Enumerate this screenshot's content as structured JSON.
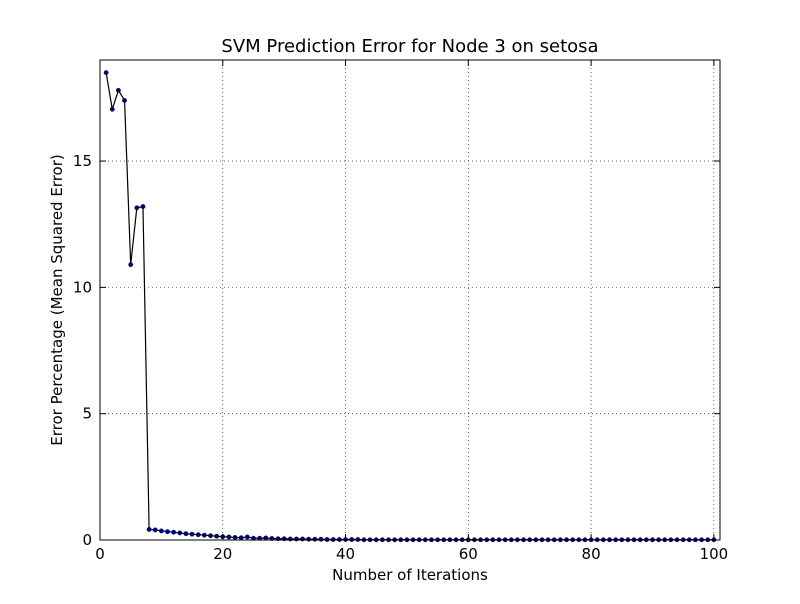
{
  "chart_data": {
    "type": "line",
    "title": "SVM Prediction Error for Node 3 on setosa",
    "xlabel": "Number of Iterations",
    "ylabel": "Error Percentage (Mean Squared Error)",
    "xlim": [
      0,
      101
    ],
    "ylim": [
      0,
      19
    ],
    "xticks": [
      0,
      20,
      40,
      60,
      80,
      100
    ],
    "yticks": [
      0,
      5,
      10,
      15
    ],
    "xtick_labels": [
      "0",
      "20",
      "40",
      "60",
      "80",
      "100"
    ],
    "ytick_labels": [
      "0",
      "5",
      "10",
      "15"
    ],
    "grid": true,
    "series": [
      {
        "line_color": "#000000",
        "marker_color": "#00008b",
        "x": [
          1,
          2,
          3,
          4,
          5,
          6,
          7,
          8,
          9,
          10,
          11,
          12,
          13,
          14,
          15,
          16,
          17,
          18,
          19,
          20,
          21,
          22,
          23,
          24,
          25,
          26,
          27,
          28,
          29,
          30,
          31,
          32,
          33,
          34,
          35,
          36,
          37,
          38,
          39,
          40,
          41,
          42,
          43,
          44,
          45,
          46,
          47,
          48,
          49,
          50,
          51,
          52,
          53,
          54,
          55,
          56,
          57,
          58,
          59,
          60,
          61,
          62,
          63,
          64,
          65,
          66,
          67,
          68,
          69,
          70,
          71,
          72,
          73,
          74,
          75,
          76,
          77,
          78,
          79,
          80,
          81,
          82,
          83,
          84,
          85,
          86,
          87,
          88,
          89,
          90,
          91,
          92,
          93,
          94,
          95,
          96,
          97,
          98,
          99,
          100
        ],
        "y": [
          18.5,
          17.05,
          17.8,
          17.4,
          10.9,
          13.15,
          13.2,
          0.42,
          0.4,
          0.36,
          0.33,
          0.31,
          0.28,
          0.25,
          0.23,
          0.21,
          0.19,
          0.17,
          0.15,
          0.13,
          0.12,
          0.1,
          0.09,
          0.12,
          0.07,
          0.07,
          0.08,
          0.06,
          0.05,
          0.05,
          0.04,
          0.04,
          0.04,
          0.03,
          0.03,
          0.03,
          0.02,
          0.02,
          0.02,
          0.02,
          0.02,
          0.02,
          0.01,
          0.01,
          0.01,
          0.01,
          0.01,
          0.01,
          0.01,
          0.01,
          0.01,
          0.01,
          0.01,
          0.01,
          0.01,
          0.01,
          0.01,
          0.01,
          0.01,
          0.01,
          0.01,
          0.01,
          0.01,
          0.01,
          0.01,
          0.01,
          0.01,
          0.01,
          0.01,
          0.01,
          0.01,
          0.01,
          0.01,
          0.01,
          0.01,
          0.01,
          0.01,
          0.01,
          0.01,
          0.01,
          0.01,
          0.01,
          0.01,
          0.01,
          0.01,
          0.01,
          0.01,
          0.01,
          0.01,
          0.01,
          0.01,
          0.01,
          0.01,
          0.01,
          0.01,
          0.01,
          0.01,
          0.01,
          0.01,
          0.01
        ]
      }
    ]
  }
}
